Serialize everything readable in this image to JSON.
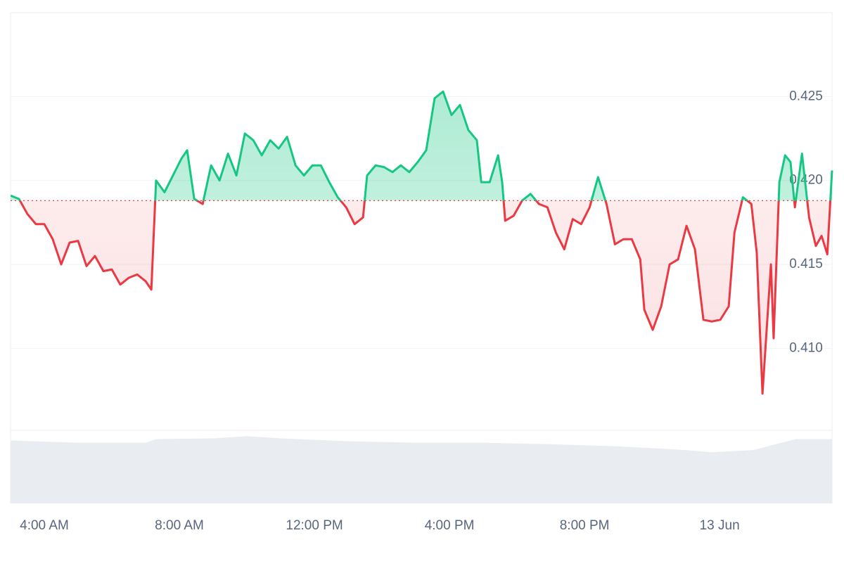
{
  "chart_data": {
    "type": "baseline-line",
    "x": [
      3.0,
      3.25,
      3.5,
      3.75,
      4.0,
      4.25,
      4.5,
      4.75,
      5.0,
      5.25,
      5.5,
      5.75,
      6.0,
      6.25,
      6.5,
      6.75,
      7.0,
      7.17,
      7.31,
      7.56,
      7.81,
      8.06,
      8.23,
      8.44,
      8.69,
      8.94,
      9.19,
      9.44,
      9.69,
      9.94,
      10.19,
      10.44,
      10.69,
      10.94,
      11.19,
      11.44,
      11.69,
      11.94,
      12.19,
      12.44,
      12.69,
      12.94,
      13.19,
      13.44,
      13.56,
      13.81,
      14.06,
      14.31,
      14.56,
      14.81,
      15.06,
      15.31,
      15.56,
      15.81,
      16.06,
      16.31,
      16.56,
      16.81,
      16.94,
      17.19,
      17.44,
      17.56,
      17.65,
      17.9,
      18.15,
      18.4,
      18.65,
      18.9,
      19.15,
      19.4,
      19.65,
      19.9,
      20.15,
      20.4,
      20.65,
      20.9,
      21.15,
      21.4,
      21.65,
      21.77,
      22.02,
      22.27,
      22.52,
      22.77,
      23.02,
      23.27,
      23.52,
      23.77,
      24.02,
      24.27,
      24.44,
      24.69,
      24.94,
      25.1,
      25.27,
      25.52,
      25.6,
      25.77,
      25.94,
      26.1,
      26.23,
      26.44,
      26.65,
      26.85,
      27.02,
      27.19,
      27.33
    ],
    "values": [
      0.4191,
      0.4189,
      0.418,
      0.4174,
      0.4174,
      0.4165,
      0.415,
      0.4163,
      0.4164,
      0.4149,
      0.4155,
      0.4146,
      0.4147,
      0.4138,
      0.4142,
      0.4144,
      0.414,
      0.4135,
      0.42,
      0.4193,
      0.4203,
      0.4213,
      0.4218,
      0.4189,
      0.4186,
      0.4209,
      0.42,
      0.4216,
      0.4203,
      0.4228,
      0.4224,
      0.4215,
      0.4224,
      0.4219,
      0.4226,
      0.4209,
      0.4203,
      0.4209,
      0.4209,
      0.4199,
      0.419,
      0.4184,
      0.4174,
      0.4178,
      0.4203,
      0.4209,
      0.4208,
      0.4205,
      0.4209,
      0.4205,
      0.4211,
      0.4218,
      0.4249,
      0.4253,
      0.4239,
      0.4245,
      0.423,
      0.4224,
      0.4199,
      0.4199,
      0.4215,
      0.4199,
      0.4176,
      0.4179,
      0.4188,
      0.4192,
      0.4186,
      0.4184,
      0.4169,
      0.4159,
      0.4177,
      0.4174,
      0.4184,
      0.4202,
      0.4186,
      0.4162,
      0.4165,
      0.4165,
      0.4153,
      0.4123,
      0.4111,
      0.4125,
      0.415,
      0.4153,
      0.4173,
      0.4159,
      0.4117,
      0.4116,
      0.4117,
      0.4125,
      0.4169,
      0.419,
      0.4186,
      0.4157,
      0.4073,
      0.415,
      0.4106,
      0.4199,
      0.4215,
      0.4211,
      0.4184,
      0.4216,
      0.4178,
      0.4161,
      0.4167,
      0.4156,
      0.4206
    ],
    "baseline": 0.4188,
    "up_color": "#16c784",
    "down_color": "#ea3943",
    "xlim": [
      3.0,
      27.33
    ],
    "xticks": [
      {
        "value": 4,
        "label": "4:00 AM"
      },
      {
        "value": 8,
        "label": "8:00 AM"
      },
      {
        "value": 12,
        "label": "12:00 PM"
      },
      {
        "value": 16,
        "label": "4:00 PM"
      },
      {
        "value": 20,
        "label": "8:00 PM"
      },
      {
        "value": 24,
        "label": "13 Jun"
      }
    ],
    "ylim": [
      0.4052,
      0.43
    ],
    "yticks": [
      {
        "value": 0.41,
        "label": "0.410"
      },
      0.415,
      {
        "value": 0.42,
        "label": "0.420"
      },
      0.425
    ],
    "grid": true,
    "volume": {
      "x": [
        3,
        5,
        7,
        7.31,
        9,
        10,
        11,
        13,
        15,
        17,
        19,
        21,
        23,
        23.75,
        25,
        26.25,
        27.33
      ],
      "values": [
        86,
        83,
        83,
        88,
        89,
        92,
        89,
        85,
        83,
        83,
        81,
        78,
        73,
        70,
        73,
        88,
        88
      ],
      "ylim": [
        0,
        100
      ],
      "color": "#e9ecf0"
    }
  }
}
